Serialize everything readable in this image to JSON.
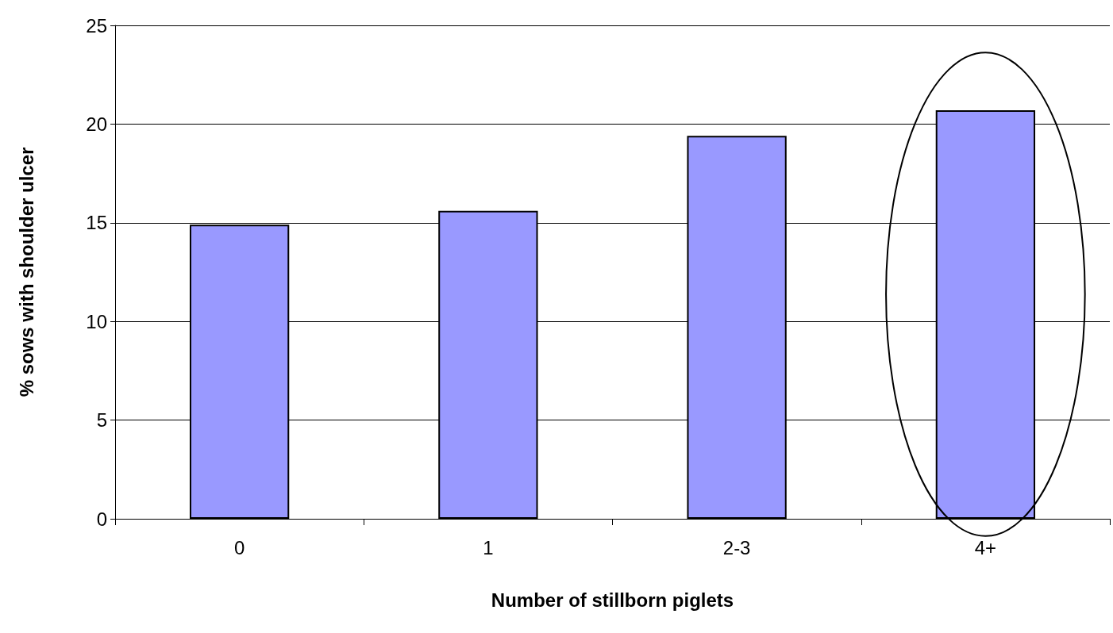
{
  "chart_data": {
    "type": "bar",
    "xlabel": "Number of stillborn piglets",
    "ylabel": "% sows with shoulder ulcer",
    "categories": [
      "0",
      "1",
      "2-3",
      "4+"
    ],
    "values": [
      14.9,
      15.6,
      19.4,
      20.7
    ],
    "color": "#9999ff",
    "ylim": [
      0,
      25
    ],
    "yticks": [
      0,
      5,
      10,
      15,
      20,
      25
    ],
    "grid": "y"
  }
}
